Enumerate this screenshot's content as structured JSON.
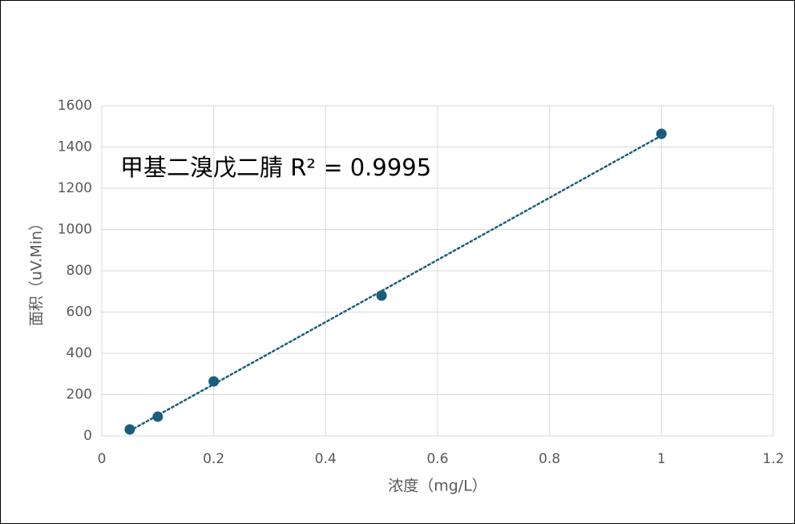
{
  "chart_data": {
    "type": "scatter",
    "annotation": "甲基二溴戊二腈  R² = 0.9995",
    "x_label": "浓度（mg/L）",
    "y_label": "面积（uV.Min）",
    "series": [
      {
        "color": "#1b5e7b",
        "x": [
          0.05,
          0.1,
          0.2,
          0.5,
          1
        ],
        "values": [
          31,
          93,
          264,
          680,
          1464
        ]
      }
    ],
    "trendline": "linear",
    "xlim": [
      0,
      1.2
    ],
    "xticks": [
      0,
      0.2,
      0.4,
      0.6,
      0.8,
      1,
      1.2
    ],
    "ylim": [
      0,
      1600
    ],
    "yticks": [
      0,
      200,
      400,
      600,
      800,
      1000,
      1200,
      1400,
      1600
    ],
    "grid": true
  }
}
